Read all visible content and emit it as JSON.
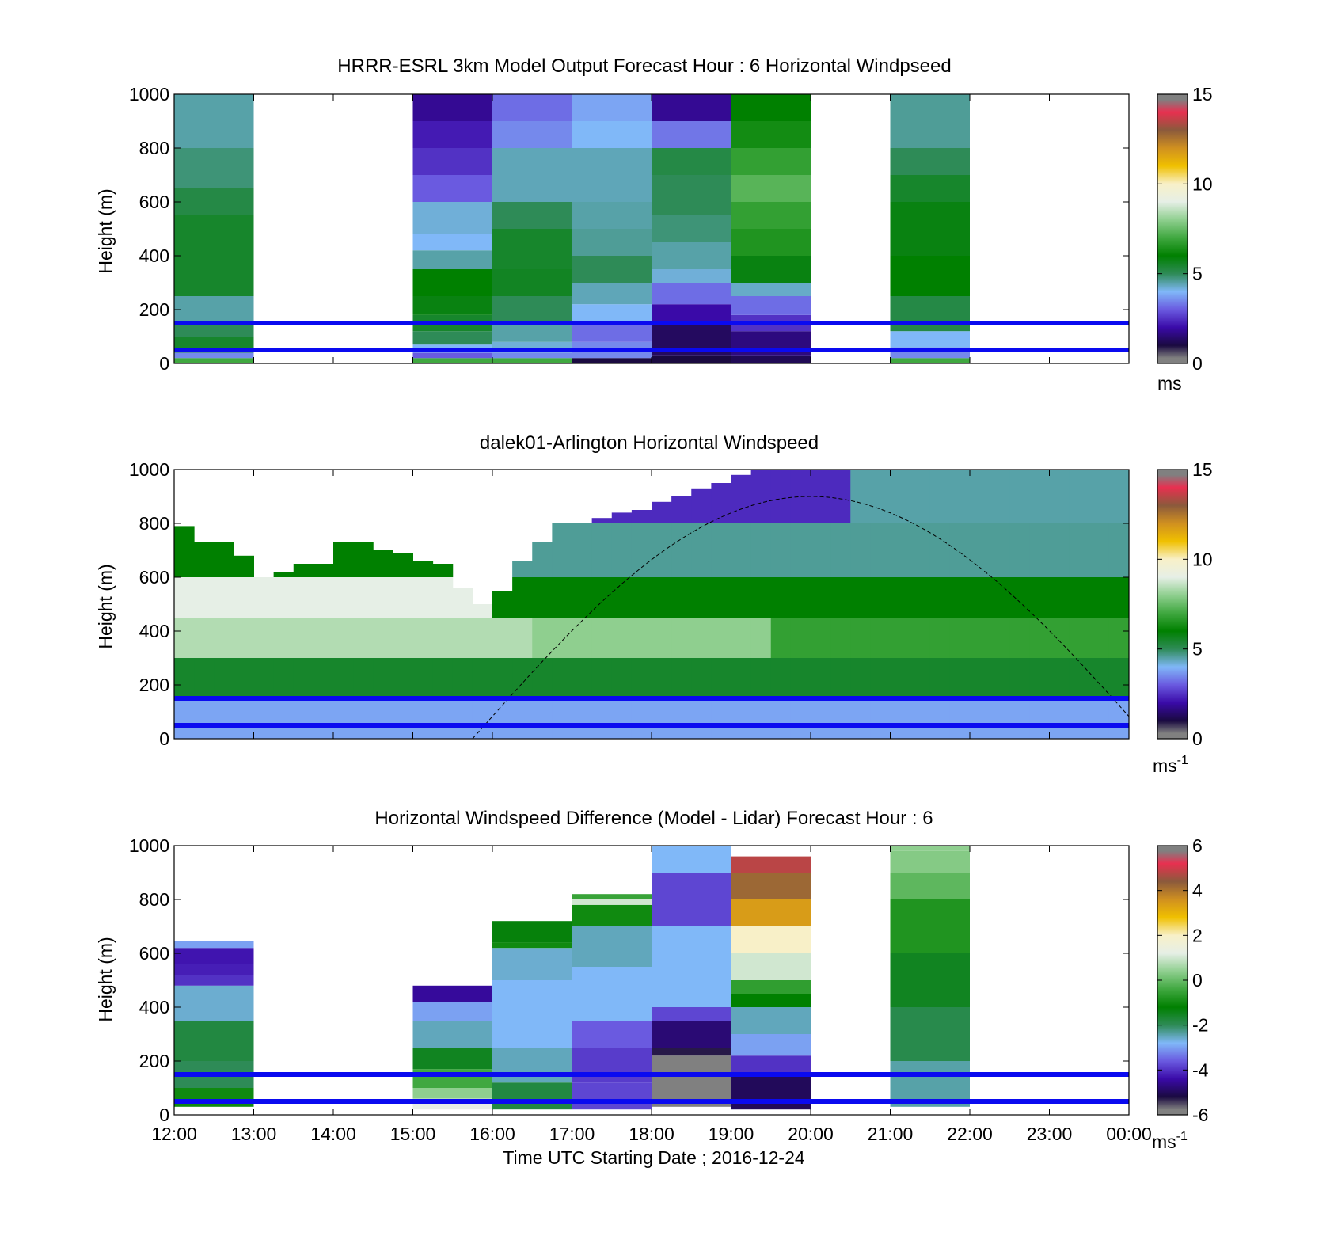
{
  "figure": {
    "xlabel": "Time UTC  Starting Date ; 2016-12-24",
    "x_tick_labels": [
      "12:00",
      "13:00",
      "14:00",
      "15:00",
      "16:00",
      "17:00",
      "18:00",
      "19:00",
      "20:00",
      "21:00",
      "22:00",
      "23:00",
      "00:00"
    ]
  },
  "colormaps": {
    "windspeed": [
      "#808080",
      "#1a0a40",
      "#3a0aa8",
      "#6a5ae0",
      "#80b8f8",
      "#2e8b57",
      "#008000",
      "#40a840",
      "#8fcf8f",
      "#e6efe6",
      "#f8f0c8",
      "#f0c000",
      "#d09020",
      "#8b5a3c",
      "#e83050",
      "#808080"
    ],
    "difference": [
      "#808080",
      "#1a0a40",
      "#3a0aa8",
      "#6a5ae0",
      "#80b8f8",
      "#2e8b57",
      "#008000",
      "#40a840",
      "#8fcf8f",
      "#e6efe6",
      "#f8f0c8",
      "#f0c000",
      "#d09020",
      "#8b5a3c",
      "#e83050",
      "#808080"
    ]
  },
  "chart_data": [
    {
      "type": "heatmap",
      "title": "HRRR-ESRL 3km Model Output   Forecast Hour : 6 Horizontal Windpseed",
      "ylabel": "Height (m)",
      "ylim": [
        0,
        1000
      ],
      "y_ticks": [
        "0",
        "200",
        "400",
        "600",
        "800",
        "1000"
      ],
      "x_range_hours": [
        12,
        24
      ],
      "colorbar": {
        "label": "ms",
        "ticks": [
          "0",
          "5",
          "10",
          "15"
        ],
        "vmin": 0,
        "vmax": 15,
        "cmap": "windspeed"
      },
      "reference_lines_m": [
        150,
        50
      ],
      "columns": [
        {
          "t0": 12,
          "t1": 13,
          "levels": [
            [
              0,
              20,
              7
            ],
            [
              20,
              40,
              3.5
            ],
            [
              40,
              100,
              5.5
            ],
            [
              100,
              150,
              5
            ],
            [
              150,
              250,
              4.5
            ],
            [
              250,
              350,
              5.5
            ],
            [
              350,
              450,
              5.5
            ],
            [
              450,
              550,
              5.5
            ],
            [
              550,
              650,
              5.2
            ],
            [
              650,
              800,
              4.8
            ],
            [
              800,
              1000,
              4.5
            ]
          ]
        },
        {
          "t0": 15,
          "t1": 16,
          "levels": [
            [
              0,
              20,
              7
            ],
            [
              20,
              40,
              3
            ],
            [
              40,
              70,
              4
            ],
            [
              70,
              120,
              5
            ],
            [
              120,
              180,
              5.5
            ],
            [
              180,
              250,
              5.8
            ],
            [
              250,
              350,
              6
            ],
            [
              350,
              420,
              4.5
            ],
            [
              420,
              480,
              4
            ],
            [
              480,
              600,
              4.2
            ],
            [
              600,
              700,
              3
            ],
            [
              700,
              800,
              2.5
            ],
            [
              800,
              900,
              2.2
            ],
            [
              900,
              1000,
              1.8
            ]
          ]
        },
        {
          "t0": 16,
          "t1": 17,
          "levels": [
            [
              0,
              20,
              7
            ],
            [
              20,
              40,
              3.5
            ],
            [
              40,
              80,
              4.2
            ],
            [
              80,
              150,
              4.5
            ],
            [
              150,
              250,
              5
            ],
            [
              250,
              350,
              5.6
            ],
            [
              350,
              500,
              5.5
            ],
            [
              500,
              600,
              5
            ],
            [
              600,
              800,
              4.4
            ],
            [
              800,
              900,
              3.5
            ],
            [
              900,
              1000,
              3.2
            ]
          ]
        },
        {
          "t0": 17,
          "t1": 18,
          "levels": [
            [
              0,
              20,
              1
            ],
            [
              20,
              80,
              3.5
            ],
            [
              80,
              150,
              3.2
            ],
            [
              150,
              220,
              4
            ],
            [
              220,
              300,
              4.4
            ],
            [
              300,
              400,
              5
            ],
            [
              400,
              500,
              4.6
            ],
            [
              500,
              600,
              4.5
            ],
            [
              600,
              800,
              4.4
            ],
            [
              800,
              900,
              4
            ],
            [
              900,
              1000,
              3.8
            ]
          ]
        },
        {
          "t0": 18,
          "t1": 19,
          "levels": [
            [
              0,
              30,
              1
            ],
            [
              30,
              150,
              1.3
            ],
            [
              150,
              220,
              2
            ],
            [
              220,
              300,
              3.2
            ],
            [
              300,
              350,
              4.2
            ],
            [
              350,
              450,
              4.5
            ],
            [
              450,
              550,
              4.8
            ],
            [
              550,
              700,
              5
            ],
            [
              700,
              800,
              5.2
            ],
            [
              800,
              900,
              3.3
            ],
            [
              900,
              1000,
              1.8
            ]
          ]
        },
        {
          "t0": 19,
          "t1": 20,
          "levels": [
            [
              0,
              30,
              1.2
            ],
            [
              30,
              120,
              1.6
            ],
            [
              120,
              180,
              2.5
            ],
            [
              180,
              250,
              3.2
            ],
            [
              250,
              300,
              4.3
            ],
            [
              300,
              400,
              5.8
            ],
            [
              400,
              500,
              6.5
            ],
            [
              500,
              600,
              6.8
            ],
            [
              600,
              700,
              7.3
            ],
            [
              700,
              800,
              6.8
            ],
            [
              800,
              900,
              6.3
            ],
            [
              900,
              1000,
              6
            ]
          ]
        },
        {
          "t0": 21,
          "t1": 22,
          "levels": [
            [
              0,
              20,
              7
            ],
            [
              20,
              60,
              3.5
            ],
            [
              60,
              120,
              4
            ],
            [
              120,
              250,
              5.2
            ],
            [
              250,
              400,
              6
            ],
            [
              400,
              600,
              5.8
            ],
            [
              600,
              700,
              5.5
            ],
            [
              700,
              800,
              5
            ],
            [
              800,
              1000,
              4.6
            ]
          ]
        }
      ]
    },
    {
      "type": "heatmap",
      "title": "dalek01-Arlington  Horizontal Windspeed",
      "ylabel": "Height (m)",
      "ylim": [
        0,
        1000
      ],
      "y_ticks": [
        "0",
        "200",
        "400",
        "600",
        "800",
        "1000"
      ],
      "x_range_hours": [
        12,
        24
      ],
      "x_step_hours": 0.25,
      "colorbar": {
        "label": "ms",
        "label_exponent": "-1",
        "ticks": [
          "0",
          "5",
          "10",
          "15"
        ],
        "vmin": 0,
        "vmax": 15,
        "cmap": "windspeed"
      },
      "reference_lines_m": [
        150,
        50
      ],
      "profile_tops_m": [
        790,
        730,
        730,
        680,
        600,
        620,
        650,
        650,
        730,
        730,
        700,
        690,
        660,
        650,
        560,
        500,
        550,
        660,
        730,
        800,
        800,
        820,
        840,
        850,
        880,
        900,
        930,
        950,
        980,
        1000,
        1000,
        1000,
        1000,
        1000,
        1000,
        1000,
        1000,
        1000,
        1000,
        1000,
        1000,
        1000,
        1000,
        1000,
        1000,
        1000,
        1000,
        1000
      ],
      "layers": [
        {
          "z0": 0,
          "z1": 150,
          "from_hour": 12,
          "to_hour": 24,
          "speed": 3.8
        },
        {
          "z0": 150,
          "z1": 300,
          "from_hour": 12,
          "to_hour": 24,
          "speed": 5.5
        },
        {
          "z0": 300,
          "z1": 450,
          "from_hour": 12,
          "to_hour": 16.5,
          "speed": 8.4
        },
        {
          "z0": 300,
          "z1": 450,
          "from_hour": 16.5,
          "to_hour": 19.5,
          "speed": 8.0
        },
        {
          "z0": 300,
          "z1": 450,
          "from_hour": 19.5,
          "to_hour": 24,
          "speed": 6.8
        },
        {
          "z0": 450,
          "z1": 600,
          "from_hour": 12,
          "to_hour": 16,
          "speed": 9.0
        },
        {
          "z0": 450,
          "z1": 600,
          "from_hour": 16,
          "to_hour": 24,
          "speed": 6.0
        },
        {
          "z0": 600,
          "z1": 800,
          "from_hour": 12,
          "to_hour": 16,
          "speed": 6.0
        },
        {
          "z0": 600,
          "z1": 800,
          "from_hour": 16,
          "to_hour": 24,
          "speed": 4.6
        },
        {
          "z0": 800,
          "z1": 1000,
          "from_hour": 16,
          "to_hour": 20.5,
          "speed": 2.4
        },
        {
          "z0": 800,
          "z1": 1000,
          "from_hour": 20.5,
          "to_hour": 24,
          "speed": 4.5
        }
      ],
      "overlay_curve": {
        "style": "dashed",
        "peak_hour": 20,
        "peak_height_m": 900,
        "start_hour": 15.75,
        "end_hour": 24,
        "end_height_m": 90
      }
    },
    {
      "type": "heatmap",
      "title": "Horizontal Windspeed Difference (Model - Lidar) Forecast Hour : 6",
      "ylabel": "Height (m)",
      "ylim": [
        0,
        1000
      ],
      "y_ticks": [
        "0",
        "200",
        "400",
        "600",
        "800",
        "1000"
      ],
      "x_range_hours": [
        12,
        24
      ],
      "colorbar": {
        "label": "ms",
        "label_exponent": "-1",
        "ticks": [
          "-6",
          "-4",
          "-2",
          "0",
          "2",
          "4",
          "6"
        ],
        "vmin": -6,
        "vmax": 6,
        "cmap": "difference"
      },
      "reference_lines_m": [
        150,
        50
      ],
      "columns": [
        {
          "t0": 12,
          "t1": 13,
          "levels": [
            [
              30,
              100,
              -1
            ],
            [
              100,
              200,
              -2
            ],
            [
              200,
              350,
              -1.8
            ],
            [
              350,
              480,
              -2.6
            ],
            [
              480,
              520,
              -4
            ],
            [
              520,
              560,
              -4.2
            ],
            [
              560,
              620,
              -4.3
            ],
            [
              620,
              645,
              -3
            ]
          ]
        },
        {
          "t0": 15,
          "t1": 16,
          "levels": [
            [
              20,
              60,
              1.2
            ],
            [
              60,
              100,
              0.4
            ],
            [
              100,
              170,
              -0.4
            ],
            [
              170,
              250,
              -1.5
            ],
            [
              250,
              350,
              -2.5
            ],
            [
              350,
              420,
              -3
            ],
            [
              420,
              480,
              -4.5
            ]
          ]
        },
        {
          "t0": 16,
          "t1": 17,
          "levels": [
            [
              20,
              120,
              -1.8
            ],
            [
              120,
              250,
              -2.5
            ],
            [
              250,
              500,
              -2.8
            ],
            [
              500,
              620,
              -2.6
            ],
            [
              620,
              640,
              -1
            ],
            [
              640,
              720,
              -1.3
            ]
          ]
        },
        {
          "t0": 17,
          "t1": 18,
          "levels": [
            [
              20,
              120,
              -3.8
            ],
            [
              120,
              250,
              -3.9
            ],
            [
              250,
              350,
              -3.6
            ],
            [
              350,
              550,
              -2.8
            ],
            [
              550,
              700,
              -2.5
            ],
            [
              700,
              780,
              -1
            ],
            [
              780,
              800,
              1
            ],
            [
              800,
              820,
              -0.5
            ]
          ]
        },
        {
          "t0": 18,
          "t1": 19,
          "levels": [
            [
              30,
              80,
              -6.2
            ],
            [
              80,
              220,
              -6.2
            ],
            [
              220,
              250,
              -5.3
            ],
            [
              250,
              350,
              -4.8
            ],
            [
              350,
              400,
              -3.8
            ],
            [
              400,
              600,
              -2.8
            ],
            [
              600,
              700,
              -2.8
            ],
            [
              700,
              900,
              -3.8
            ],
            [
              900,
              1000,
              -2.8
            ]
          ]
        },
        {
          "t0": 19,
          "t1": 20,
          "levels": [
            [
              20,
              150,
              -5
            ],
            [
              150,
              220,
              -4
            ],
            [
              220,
              300,
              -3
            ],
            [
              300,
              400,
              -2.5
            ],
            [
              400,
              450,
              -1.2
            ],
            [
              450,
              500,
              -0.6
            ],
            [
              500,
              600,
              1
            ],
            [
              600,
              700,
              2
            ],
            [
              700,
              800,
              3.4
            ],
            [
              800,
              900,
              4.2
            ],
            [
              900,
              960,
              4.8
            ]
          ]
        },
        {
          "t0": 21,
          "t1": 22,
          "levels": [
            [
              30,
              200,
              -2.4
            ],
            [
              200,
              400,
              -1.9
            ],
            [
              400,
              600,
              -1.5
            ],
            [
              600,
              800,
              -0.8
            ],
            [
              800,
              900,
              -0.1
            ],
            [
              900,
              980,
              0.3
            ],
            [
              980,
              1000,
              0.4
            ]
          ]
        }
      ]
    }
  ]
}
